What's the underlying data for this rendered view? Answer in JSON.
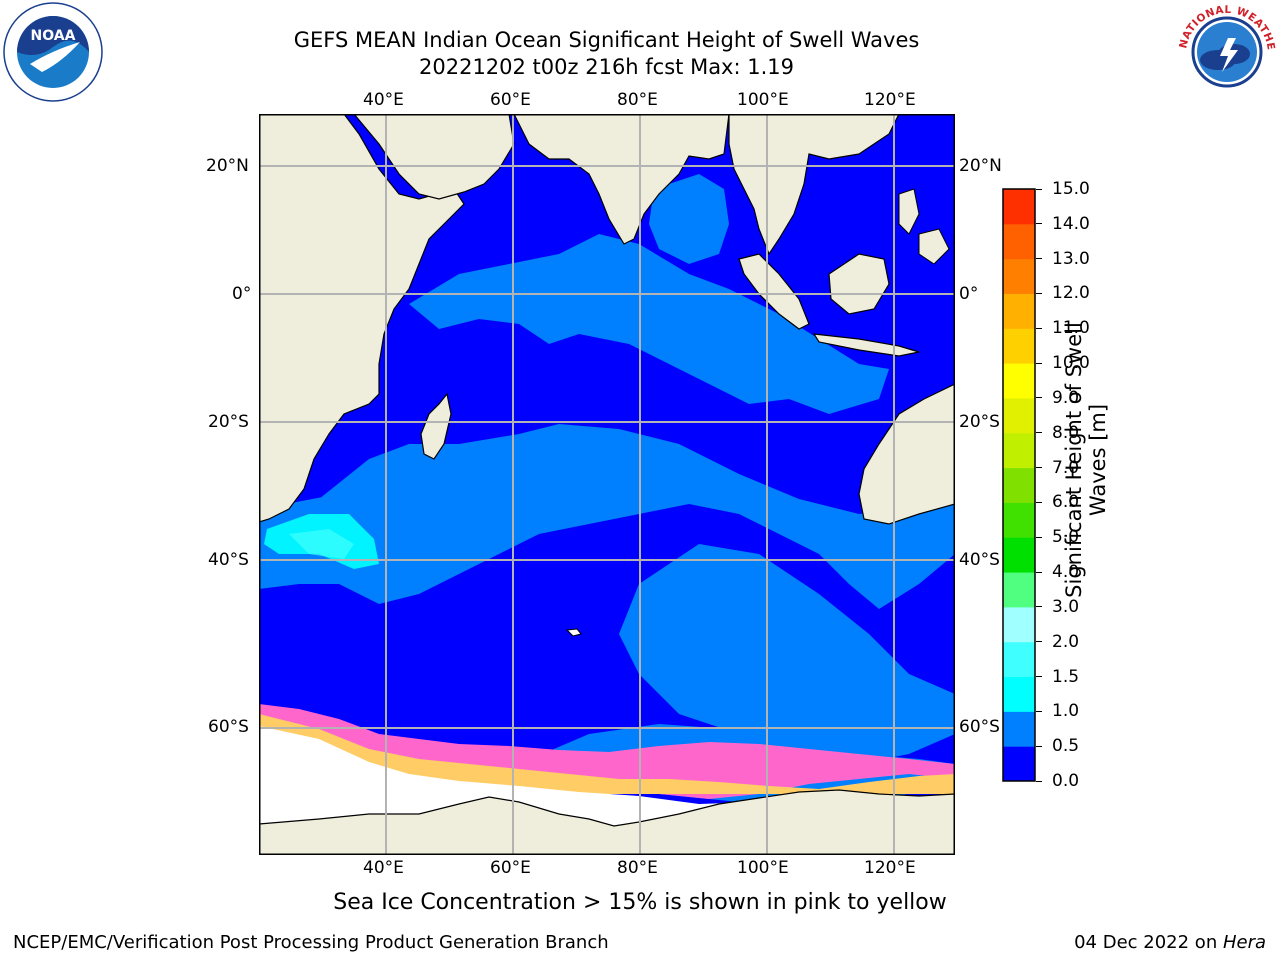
{
  "title": {
    "line1": "GEFS MEAN Indian Ocean Significant Height of Swell Waves",
    "line2": "20221202 t00z 216h fcst   Max: 1.19"
  },
  "map": {
    "lon_labels": [
      "40°E",
      "60°E",
      "80°E",
      "100°E",
      "120°E"
    ],
    "lat_labels": [
      "20°N",
      "0°",
      "20°S",
      "40°S",
      "60°S"
    ],
    "colors": {
      "land": "#efeedc",
      "ice": "#ffffff",
      "grid": "#b3b3b3"
    }
  },
  "colorbar": {
    "label_line1": "Significant Height of Swell",
    "label_line2": "Waves [m]",
    "ticks": [
      "0.0",
      "0.5",
      "1.0",
      "1.5",
      "2.0",
      "3.0",
      "4.0",
      "5.0",
      "6.0",
      "7.0",
      "8.0",
      "9.0",
      "10.0",
      "11.0",
      "12.0",
      "13.0",
      "14.0",
      "15.0"
    ],
    "colors": [
      "#0000ff",
      "#0080ff",
      "#00ffff",
      "#40ffff",
      "#a0ffff",
      "#50ff80",
      "#00e000",
      "#40e000",
      "#80e000",
      "#c0f000",
      "#e0f000",
      "#ffff00",
      "#ffd000",
      "#ffb000",
      "#ff8000",
      "#ff6000",
      "#ff3000",
      "#ff0000"
    ]
  },
  "caption": "Sea Ice Concentration > 15% is shown in pink to yellow",
  "footer": {
    "left": "NCEP/EMC/Verification Post Processing Product Generation Branch",
    "right_prefix": "04 Dec 2022 on ",
    "right_host": "Hera"
  },
  "logos": {
    "noaa_text": "NOAA",
    "nws_text": "NATIONAL WEATHER SERVICE"
  }
}
